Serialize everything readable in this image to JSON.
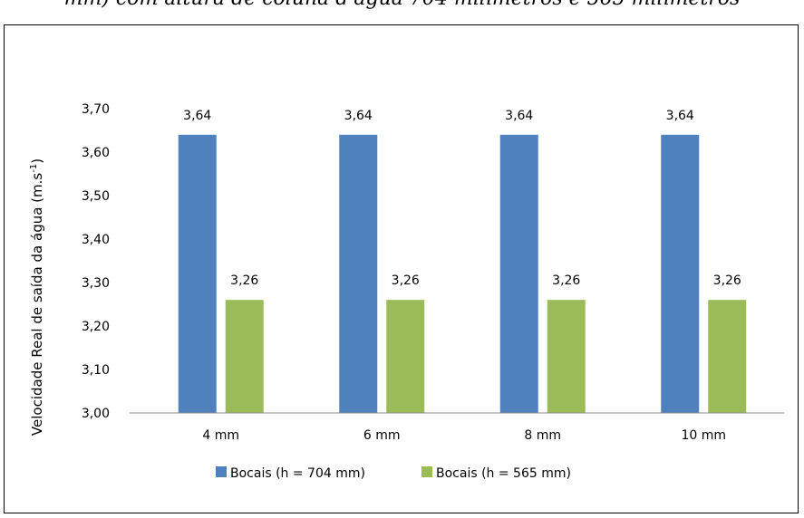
{
  "caption_fragment": "mm) com altura de coluna d'água 704 milímetros e 565 milímetros",
  "chart_data": {
    "type": "bar",
    "categories": [
      "4 mm",
      "6 mm",
      "8 mm",
      "10 mm"
    ],
    "series": [
      {
        "name": "Bocais  (h = 704 mm)",
        "values": [
          3.64,
          3.64,
          3.64,
          3.64
        ],
        "color": "#4f81bd"
      },
      {
        "name": "Bocais  (h = 565 mm)",
        "values": [
          3.26,
          3.26,
          3.26,
          3.26
        ],
        "color": "#9bbb59"
      }
    ],
    "data_labels": [
      "3,64",
      "3,26"
    ],
    "yticks": [
      "3,00",
      "3,10",
      "3,20",
      "3,30",
      "3,40",
      "3,50",
      "3,60",
      "3,70"
    ],
    "ylim": [
      3.0,
      3.7
    ],
    "ylabel_main": "Velocidade Real de saída da água  (m.s",
    "ylabel_sup": "-1",
    "ylabel_close": ")",
    "grid": false,
    "legend_position": "bottom"
  }
}
